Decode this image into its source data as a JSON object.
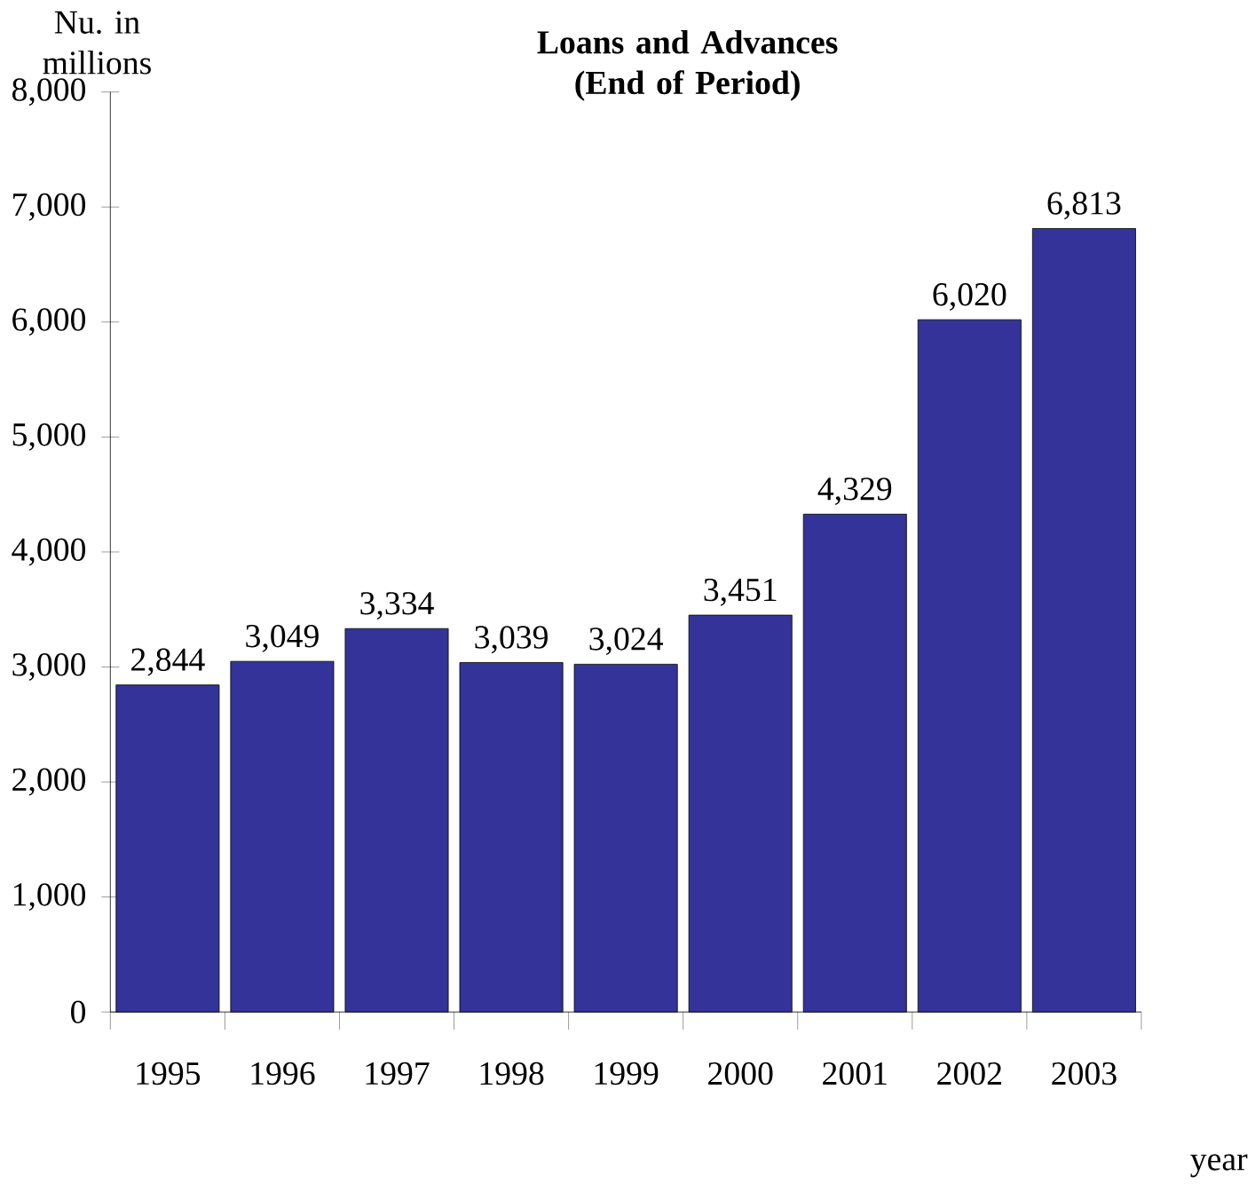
{
  "chart_data": {
    "type": "bar",
    "title": "Loans and Advances (End of Period)",
    "ylabel": "Nu. in millions",
    "xlabel": "year",
    "categories": [
      "1995",
      "1996",
      "1997",
      "1998",
      "1999",
      "2000",
      "2001",
      "2002",
      "2003"
    ],
    "values": [
      2844,
      3049,
      3334,
      3039,
      3024,
      3451,
      4329,
      6020,
      6813
    ],
    "value_labels": [
      "2,844",
      "3,049",
      "3,334",
      "3,039",
      "3,024",
      "3,451",
      "4,329",
      "6,020",
      "6,813"
    ],
    "color": "#333399",
    "ylim": [
      0,
      8000
    ],
    "yticks": [
      {
        "value": 0,
        "label": "0"
      },
      {
        "value": 1000,
        "label": "1,000"
      },
      {
        "value": 2000,
        "label": "2,000"
      },
      {
        "value": 3000,
        "label": "3,000"
      },
      {
        "value": 4000,
        "label": "4,000"
      },
      {
        "value": 5000,
        "label": "5,000"
      },
      {
        "value": 6000,
        "label": "6,000"
      },
      {
        "value": 7000,
        "label": "7,000"
      },
      {
        "value": 8000,
        "label": "8,000"
      }
    ]
  }
}
